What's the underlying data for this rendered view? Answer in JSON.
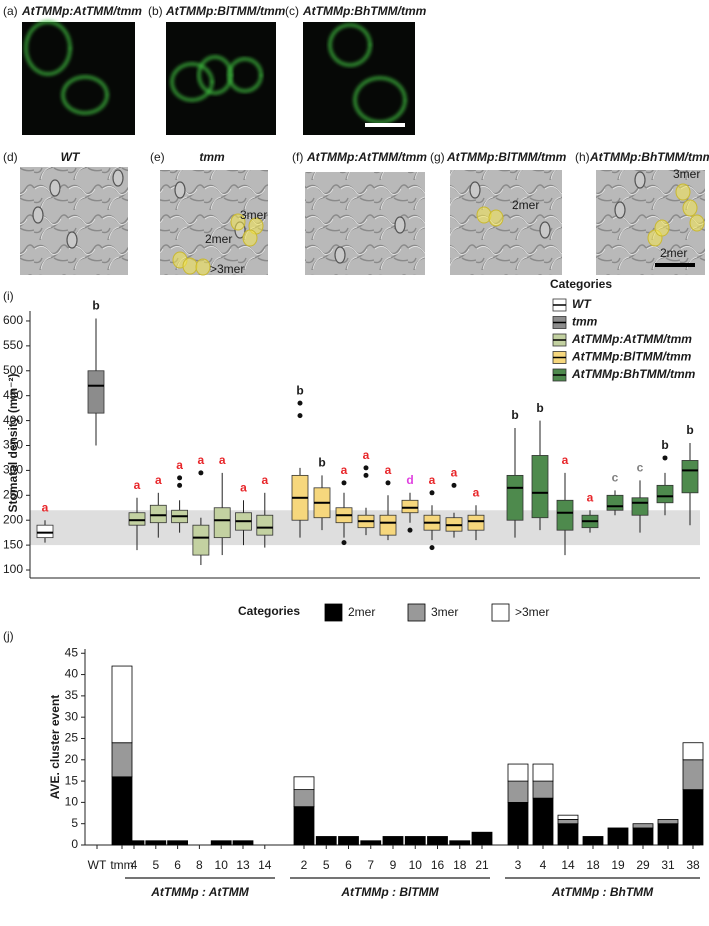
{
  "panels": [
    {
      "label": "(a)",
      "title": "AtTMMp:AtTMM/tmm"
    },
    {
      "label": "(b)",
      "title": "AtTMMp:BlTMM/tmm"
    },
    {
      "label": "(c)",
      "title": "AtTMMp:BhTMM/tmm"
    },
    {
      "label": "(d)",
      "title": "WT"
    },
    {
      "label": "(e)",
      "title": "tmm",
      "annotations": [
        "3mer",
        "2mer",
        ">3mer"
      ]
    },
    {
      "label": "(f)",
      "title": "AtTMMp:AtTMM/tmm"
    },
    {
      "label": "(g)",
      "title": "AtTMMp:BlTMM/tmm",
      "annotations": [
        "2mer"
      ]
    },
    {
      "label": "(h)",
      "title": "AtTMMp:BhTMM/tmm",
      "annotations": [
        "3mer",
        "2mer"
      ]
    }
  ],
  "chart_data": [
    {
      "type": "box",
      "panel_label": "(i)",
      "y_label": "Stomatal density (mm⁻²)",
      "ylim": [
        90,
        620
      ],
      "yticks": [
        100,
        150,
        200,
        250,
        300,
        350,
        400,
        450,
        500,
        550,
        600
      ],
      "band": [
        150,
        220
      ],
      "legend_title": "Categories",
      "series": [
        {
          "name": "WT",
          "color": "#ffffff"
        },
        {
          "name": "tmm",
          "color": "#8c8c8c"
        },
        {
          "name": "AtTMMp:AtTMM/tmm",
          "color": "#c3d1a1"
        },
        {
          "name": "AtTMMp:BlTMM/tmm",
          "color": "#f6d77d"
        },
        {
          "name": "AtTMMp:BhTMM/tmm",
          "color": "#4e8a4d"
        }
      ],
      "boxes": [
        {
          "whisker_low": 155,
          "q1": 165,
          "median": 175,
          "q3": 190,
          "whisker_high": 200,
          "outliers": [],
          "letter": "a",
          "letter_color": "#e8262a",
          "color": "#ffffff"
        },
        {
          "whisker_low": 350,
          "q1": 415,
          "median": 470,
          "q3": 500,
          "whisker_high": 605,
          "outliers": [],
          "letter": "b",
          "letter_color": "#1a1a1a",
          "color": "#8c8c8c"
        },
        {
          "whisker_low": 140,
          "q1": 190,
          "median": 200,
          "q3": 215,
          "whisker_high": 245,
          "outliers": [],
          "letter": "a",
          "letter_color": "#e8262a",
          "color": "#c3d1a1"
        },
        {
          "whisker_low": 165,
          "q1": 195,
          "median": 210,
          "q3": 230,
          "whisker_high": 255,
          "outliers": [],
          "letter": "a",
          "letter_color": "#e8262a",
          "color": "#c3d1a1"
        },
        {
          "whisker_low": 175,
          "q1": 195,
          "median": 208,
          "q3": 220,
          "whisker_high": 240,
          "outliers": [
            270,
            285
          ],
          "letter": "a",
          "letter_color": "#e8262a",
          "color": "#c3d1a1"
        },
        {
          "whisker_low": 110,
          "q1": 130,
          "median": 165,
          "q3": 190,
          "whisker_high": 205,
          "outliers": [
            295
          ],
          "letter": "a",
          "letter_color": "#e8262a",
          "color": "#c3d1a1"
        },
        {
          "whisker_low": 130,
          "q1": 165,
          "median": 200,
          "q3": 225,
          "whisker_high": 295,
          "outliers": [],
          "letter": "a",
          "letter_color": "#e8262a",
          "color": "#c3d1a1"
        },
        {
          "whisker_low": 150,
          "q1": 180,
          "median": 198,
          "q3": 215,
          "whisker_high": 240,
          "outliers": [],
          "letter": "a",
          "letter_color": "#e8262a",
          "color": "#c3d1a1"
        },
        {
          "whisker_low": 145,
          "q1": 170,
          "median": 185,
          "q3": 210,
          "whisker_high": 255,
          "outliers": [],
          "letter": "a",
          "letter_color": "#e8262a",
          "color": "#c3d1a1"
        },
        {
          "whisker_low": 165,
          "q1": 200,
          "median": 245,
          "q3": 290,
          "whisker_high": 305,
          "outliers": [
            410,
            435
          ],
          "letter": "b",
          "letter_color": "#1a1a1a",
          "color": "#f6d77d"
        },
        {
          "whisker_low": 180,
          "q1": 205,
          "median": 235,
          "q3": 265,
          "whisker_high": 290,
          "outliers": [],
          "letter": "b",
          "letter_color": "#1a1a1a",
          "color": "#f6d77d"
        },
        {
          "whisker_low": 165,
          "q1": 195,
          "median": 210,
          "q3": 225,
          "whisker_high": 255,
          "outliers": [
            155,
            275
          ],
          "letter": "a",
          "letter_color": "#e8262a",
          "color": "#f6d77d"
        },
        {
          "whisker_low": 170,
          "q1": 185,
          "median": 198,
          "q3": 210,
          "whisker_high": 225,
          "outliers": [
            290,
            305
          ],
          "letter": "a",
          "letter_color": "#e8262a",
          "color": "#f6d77d"
        },
        {
          "whisker_low": 160,
          "q1": 170,
          "median": 195,
          "q3": 210,
          "whisker_high": 250,
          "outliers": [
            275
          ],
          "letter": "a",
          "letter_color": "#e8262a",
          "color": "#f6d77d"
        },
        {
          "whisker_low": 195,
          "q1": 215,
          "median": 225,
          "q3": 240,
          "whisker_high": 255,
          "outliers": [
            180
          ],
          "letter": "d",
          "letter_color": "#e040e0",
          "color": "#f6d77d"
        },
        {
          "whisker_low": 160,
          "q1": 180,
          "median": 195,
          "q3": 210,
          "whisker_high": 230,
          "outliers": [
            145,
            255
          ],
          "letter": "a",
          "letter_color": "#e8262a",
          "color": "#f6d77d"
        },
        {
          "whisker_low": 165,
          "q1": 178,
          "median": 190,
          "q3": 205,
          "whisker_high": 215,
          "outliers": [
            270
          ],
          "letter": "a",
          "letter_color": "#e8262a",
          "color": "#f6d77d"
        },
        {
          "whisker_low": 160,
          "q1": 180,
          "median": 198,
          "q3": 210,
          "whisker_high": 230,
          "outliers": [],
          "letter": "a",
          "letter_color": "#e8262a",
          "color": "#f6d77d"
        },
        {
          "whisker_low": 165,
          "q1": 200,
          "median": 265,
          "q3": 290,
          "whisker_high": 385,
          "outliers": [],
          "letter": "b",
          "letter_color": "#1a1a1a",
          "color": "#4e8a4d"
        },
        {
          "whisker_low": 180,
          "q1": 205,
          "median": 255,
          "q3": 330,
          "whisker_high": 400,
          "outliers": [],
          "letter": "b",
          "letter_color": "#1a1a1a",
          "color": "#4e8a4d"
        },
        {
          "whisker_low": 130,
          "q1": 180,
          "median": 215,
          "q3": 240,
          "whisker_high": 295,
          "outliers": [],
          "letter": "a",
          "letter_color": "#e8262a",
          "color": "#4e8a4d"
        },
        {
          "whisker_low": 175,
          "q1": 185,
          "median": 198,
          "q3": 210,
          "whisker_high": 220,
          "outliers": [],
          "letter": "a",
          "letter_color": "#e8262a",
          "color": "#4e8a4d"
        },
        {
          "whisker_low": 210,
          "q1": 220,
          "median": 228,
          "q3": 250,
          "whisker_high": 260,
          "outliers": [],
          "letter": "c",
          "letter_color": "#808080",
          "color": "#4e8a4d"
        },
        {
          "whisker_low": 175,
          "q1": 210,
          "median": 235,
          "q3": 245,
          "whisker_high": 280,
          "outliers": [],
          "letter": "c",
          "letter_color": "#808080",
          "color": "#4e8a4d"
        },
        {
          "whisker_low": 210,
          "q1": 235,
          "median": 248,
          "q3": 270,
          "whisker_high": 295,
          "outliers": [
            325
          ],
          "letter": "b",
          "letter_color": "#1a1a1a",
          "color": "#4e8a4d"
        },
        {
          "whisker_low": 190,
          "q1": 255,
          "median": 300,
          "q3": 320,
          "whisker_high": 355,
          "outliers": [],
          "letter": "b",
          "letter_color": "#1a1a1a",
          "color": "#4e8a4d"
        }
      ]
    },
    {
      "type": "stacked-bar",
      "panel_label": "(j)",
      "y_label": "AVE. cluster event",
      "legend_title": "Categories",
      "ylim": [
        0,
        46
      ],
      "yticks": [
        0,
        5,
        10,
        15,
        20,
        25,
        30,
        35,
        40,
        45
      ],
      "categories": [
        "WT",
        "tmm",
        "4",
        "5",
        "6",
        "8",
        "10",
        "13",
        "14",
        "2",
        "5",
        "6",
        "7",
        "9",
        "10",
        "16",
        "18",
        "21",
        "3",
        "4",
        "14",
        "18",
        "19",
        "29",
        "31",
        "38"
      ],
      "group_labels": [
        "AtTMMp : AtTMM",
        "AtTMMp : BlTMM",
        "AtTMMp : BhTMM"
      ],
      "series": [
        {
          "name": "2mer",
          "color": "#000000",
          "values": [
            0,
            16,
            1,
            1,
            1,
            0,
            1,
            1,
            0,
            9,
            2,
            2,
            1,
            2,
            2,
            2,
            1,
            3,
            10,
            11,
            5,
            2,
            4,
            4,
            5,
            13
          ]
        },
        {
          "name": "3mer",
          "color": "#999999",
          "values": [
            0,
            8,
            0,
            0,
            0,
            0,
            0,
            0,
            0,
            4,
            0,
            0,
            0,
            0,
            0,
            0,
            0,
            0,
            5,
            4,
            1,
            0,
            0,
            1,
            1,
            7
          ]
        },
        {
          "name": ">3mer",
          "color": "#ffffff",
          "values": [
            0,
            18,
            0,
            0,
            0,
            0,
            0,
            0,
            0,
            3,
            0,
            0,
            0,
            0,
            0,
            0,
            0,
            0,
            4,
            4,
            1,
            0,
            0,
            0,
            0,
            4
          ]
        }
      ]
    }
  ]
}
